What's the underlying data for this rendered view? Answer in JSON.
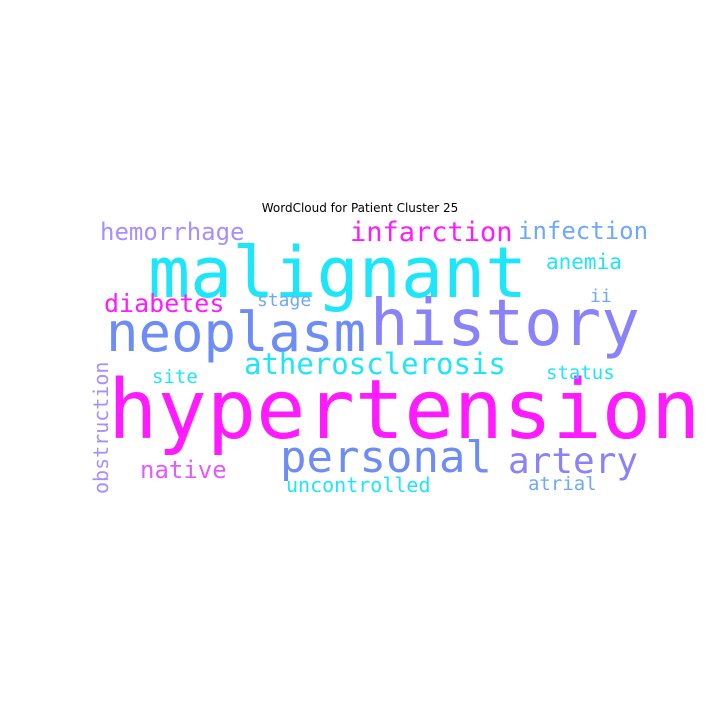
{
  "title": "WordCloud for Patient Cluster 25",
  "colors": {
    "magenta": "#ff1aff",
    "cyan": "#1ee6fa",
    "blue": "#6e8cf6",
    "violet": "#8a82fa",
    "lilac": "#a590ff",
    "lightblue": "#6fa8ff",
    "pink": "#e15cff"
  },
  "words": [
    {
      "id": "w-hypertension",
      "text": "hypertension",
      "color": "#ff1aff",
      "weight": 1.0
    },
    {
      "id": "w-malignant",
      "text": "malignant",
      "color": "#1ee6fa",
      "weight": 0.86
    },
    {
      "id": "w-history",
      "text": "history",
      "color": "#8a82fa",
      "weight": 0.8
    },
    {
      "id": "w-neoplasm",
      "text": "neoplasm",
      "color": "#6e8cf6",
      "weight": 0.69
    },
    {
      "id": "w-personal",
      "text": "personal",
      "color": "#6e8cf6",
      "weight": 0.64
    },
    {
      "id": "w-artery",
      "text": "artery",
      "color": "#8a82fa",
      "weight": 0.52
    },
    {
      "id": "w-atherosclerosis",
      "text": "atherosclerosis",
      "color": "#1ee6fa",
      "weight": 0.42
    },
    {
      "id": "w-infarction",
      "text": "infarction",
      "color": "#ff1aff",
      "weight": 0.38
    },
    {
      "id": "w-diabetes",
      "text": "diabetes",
      "color": "#ff1aff",
      "weight": 0.35
    },
    {
      "id": "w-hemorrhage",
      "text": "hemorrhage",
      "color": "#a590ff",
      "weight": 0.34
    },
    {
      "id": "w-infection",
      "text": "infection",
      "color": "#6fa8ff",
      "weight": 0.34
    },
    {
      "id": "w-native",
      "text": "native",
      "color": "#e15cff",
      "weight": 0.33
    },
    {
      "id": "w-anemia",
      "text": "anemia",
      "color": "#1ee6fa",
      "weight": 0.3
    },
    {
      "id": "w-uncontrolled",
      "text": "uncontrolled",
      "color": "#1ee6fa",
      "weight": 0.28
    },
    {
      "id": "w-obstruction",
      "text": "obstruction",
      "color": "#a590ff",
      "weight": 0.28
    },
    {
      "id": "w-site",
      "text": "site",
      "color": "#1ee6fa",
      "weight": 0.27
    },
    {
      "id": "w-status",
      "text": "status",
      "color": "#1ee6fa",
      "weight": 0.27
    },
    {
      "id": "w-atrial",
      "text": "atrial",
      "color": "#6fa8ff",
      "weight": 0.26
    },
    {
      "id": "w-stage",
      "text": "stage",
      "color": "#6fa8ff",
      "weight": 0.25
    },
    {
      "id": "w-ii",
      "text": "ii",
      "color": "#6fa8ff",
      "weight": 0.25
    }
  ]
}
